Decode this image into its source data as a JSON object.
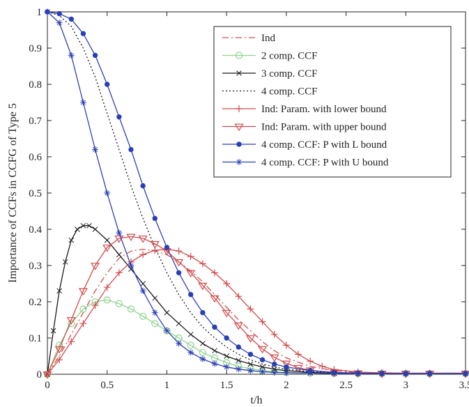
{
  "chart_data": {
    "type": "line",
    "xlabel": "t/h",
    "ylabel": "Importance of CCFs in CCFG of Type 5",
    "xlim": [
      0,
      3.5
    ],
    "ylim": [
      0,
      1
    ],
    "xticks": [
      "0",
      "0.5",
      "1",
      "1.5",
      "2",
      "2.5",
      "3",
      "3.5"
    ],
    "yticks": [
      "0",
      "0.1",
      "0.2",
      "0.3",
      "0.4",
      "0.5",
      "0.6",
      "0.7",
      "0.8",
      "0.9",
      "1"
    ],
    "xtick_values": [
      0,
      0.5,
      1,
      1.5,
      2,
      2.5,
      3,
      3.5
    ],
    "ytick_values": [
      0,
      0.1,
      0.2,
      0.3,
      0.4,
      0.5,
      0.6,
      0.7,
      0.8,
      0.9,
      1
    ],
    "grid": false,
    "legend_position": "top-right",
    "series": [
      {
        "name": "Ind",
        "color": "#d24a4a",
        "line": "dashdot",
        "marker": "none",
        "x": [
          0,
          0.1,
          0.2,
          0.3,
          0.4,
          0.5,
          0.6,
          0.7,
          0.8,
          0.9,
          1.0,
          1.1,
          1.2,
          1.3,
          1.4,
          1.5,
          1.6,
          1.7,
          1.8,
          1.9,
          2.0,
          2.2,
          2.4,
          2.6,
          2.8,
          3.0,
          3.2,
          3.5
        ],
        "y": [
          0,
          0.05,
          0.11,
          0.17,
          0.23,
          0.28,
          0.32,
          0.34,
          0.345,
          0.34,
          0.33,
          0.31,
          0.285,
          0.255,
          0.22,
          0.185,
          0.15,
          0.12,
          0.09,
          0.065,
          0.045,
          0.022,
          0.01,
          0.005,
          0.003,
          0.002,
          0.002,
          0.002
        ]
      },
      {
        "name": "2 comp. CCF",
        "color": "#8fd28f",
        "line": "solid",
        "marker": "circle-open",
        "x": [
          0,
          0.1,
          0.2,
          0.3,
          0.4,
          0.5,
          0.6,
          0.7,
          0.8,
          0.9,
          1.0,
          1.1,
          1.2,
          1.3,
          1.4,
          1.5,
          1.6,
          1.7,
          1.8,
          1.9,
          2.0,
          2.2,
          2.4,
          2.6,
          2.8,
          3.0,
          3.2,
          3.5
        ],
        "y": [
          0,
          0.08,
          0.14,
          0.18,
          0.2,
          0.205,
          0.195,
          0.18,
          0.16,
          0.14,
          0.12,
          0.1,
          0.08,
          0.06,
          0.045,
          0.032,
          0.022,
          0.015,
          0.01,
          0.007,
          0.005,
          0.003,
          0.002,
          0.002,
          0.002,
          0.002,
          0.002,
          0.002
        ]
      },
      {
        "name": "3 comp. CCF",
        "color": "#1a1a1a",
        "line": "solid",
        "marker": "x",
        "x": [
          0,
          0.05,
          0.1,
          0.15,
          0.2,
          0.25,
          0.3,
          0.35,
          0.4,
          0.5,
          0.6,
          0.7,
          0.8,
          0.9,
          1.0,
          1.1,
          1.2,
          1.3,
          1.4,
          1.5,
          1.6,
          1.7,
          1.8,
          1.9,
          2.0,
          2.2,
          2.4,
          2.6,
          2.8,
          3.0,
          3.2,
          3.5
        ],
        "y": [
          0,
          0.12,
          0.23,
          0.31,
          0.37,
          0.4,
          0.41,
          0.41,
          0.4,
          0.37,
          0.33,
          0.29,
          0.25,
          0.21,
          0.17,
          0.14,
          0.11,
          0.085,
          0.065,
          0.05,
          0.038,
          0.028,
          0.02,
          0.014,
          0.01,
          0.005,
          0.003,
          0.002,
          0.002,
          0.002,
          0.002,
          0.002
        ]
      },
      {
        "name": "4 comp. CCF",
        "color": "#1a1a1a",
        "line": "dotted",
        "marker": "none",
        "x": [
          0,
          0.1,
          0.2,
          0.3,
          0.4,
          0.5,
          0.6,
          0.7,
          0.8,
          0.9,
          1.0,
          1.1,
          1.2,
          1.3,
          1.4,
          1.5,
          1.6,
          1.7,
          1.8,
          1.9,
          2.0,
          2.2,
          2.4,
          2.6,
          2.8,
          3.0,
          3.2,
          3.5
        ],
        "y": [
          1,
          0.99,
          0.96,
          0.9,
          0.82,
          0.72,
          0.62,
          0.52,
          0.43,
          0.35,
          0.28,
          0.22,
          0.17,
          0.13,
          0.1,
          0.075,
          0.055,
          0.04,
          0.028,
          0.02,
          0.014,
          0.007,
          0.004,
          0.002,
          0.002,
          0.002,
          0.002,
          0.002
        ]
      },
      {
        "name": "Ind: Param. with lower bound",
        "color": "#d24a4a",
        "line": "solid",
        "marker": "plus",
        "x": [
          0,
          0.1,
          0.2,
          0.3,
          0.4,
          0.5,
          0.6,
          0.7,
          0.8,
          0.9,
          1.0,
          1.1,
          1.2,
          1.3,
          1.4,
          1.5,
          1.6,
          1.7,
          1.8,
          1.9,
          2.0,
          2.1,
          2.2,
          2.3,
          2.4,
          2.6,
          2.8,
          3.0,
          3.2,
          3.5
        ],
        "y": [
          0,
          0.04,
          0.09,
          0.14,
          0.19,
          0.24,
          0.28,
          0.31,
          0.33,
          0.342,
          0.345,
          0.34,
          0.325,
          0.305,
          0.28,
          0.25,
          0.215,
          0.18,
          0.145,
          0.11,
          0.08,
          0.055,
          0.036,
          0.022,
          0.013,
          0.006,
          0.004,
          0.003,
          0.003,
          0.003
        ]
      },
      {
        "name": "Ind: Param. with upper bound",
        "color": "#d24a4a",
        "line": "solid",
        "marker": "triangle-down-open",
        "x": [
          0,
          0.1,
          0.2,
          0.3,
          0.4,
          0.5,
          0.6,
          0.7,
          0.8,
          0.9,
          1.0,
          1.1,
          1.2,
          1.3,
          1.4,
          1.5,
          1.6,
          1.7,
          1.8,
          1.9,
          2.0,
          2.1,
          2.2,
          2.4,
          2.6,
          2.8,
          3.0,
          3.2,
          3.5
        ],
        "y": [
          0,
          0.07,
          0.15,
          0.23,
          0.3,
          0.35,
          0.375,
          0.38,
          0.375,
          0.36,
          0.34,
          0.31,
          0.28,
          0.245,
          0.21,
          0.17,
          0.135,
          0.1,
          0.07,
          0.047,
          0.03,
          0.018,
          0.011,
          0.005,
          0.003,
          0.002,
          0.002,
          0.002,
          0.002
        ]
      },
      {
        "name": "4 comp. CCF: P with L bound",
        "color": "#2b3fb5",
        "line": "solid",
        "marker": "dot-filled",
        "x": [
          0,
          0.1,
          0.2,
          0.3,
          0.4,
          0.5,
          0.6,
          0.7,
          0.8,
          0.9,
          1.0,
          1.1,
          1.2,
          1.3,
          1.4,
          1.5,
          1.6,
          1.7,
          1.8,
          1.9,
          2.0,
          2.2,
          2.4,
          2.6,
          2.8,
          3.0,
          3.2,
          3.5
        ],
        "y": [
          1,
          0.995,
          0.98,
          0.94,
          0.88,
          0.8,
          0.71,
          0.62,
          0.52,
          0.43,
          0.35,
          0.28,
          0.22,
          0.17,
          0.13,
          0.1,
          0.075,
          0.055,
          0.04,
          0.028,
          0.02,
          0.01,
          0.005,
          0.003,
          0.002,
          0.002,
          0.002,
          0.002
        ]
      },
      {
        "name": "4 comp. CCF: P with U bound",
        "color": "#2b3fb5",
        "line": "solid",
        "marker": "asterisk",
        "x": [
          0,
          0.1,
          0.2,
          0.3,
          0.4,
          0.5,
          0.6,
          0.7,
          0.8,
          0.9,
          1.0,
          1.1,
          1.2,
          1.3,
          1.4,
          1.5,
          1.6,
          1.7,
          1.8,
          1.9,
          2.0,
          2.2,
          2.4,
          2.6,
          2.8,
          3.0,
          3.2,
          3.5
        ],
        "y": [
          1,
          0.97,
          0.88,
          0.75,
          0.62,
          0.5,
          0.39,
          0.3,
          0.23,
          0.17,
          0.12,
          0.085,
          0.06,
          0.042,
          0.029,
          0.02,
          0.014,
          0.01,
          0.007,
          0.005,
          0.004,
          0.003,
          0.002,
          0.002,
          0.002,
          0.002,
          0.002,
          0.002
        ]
      }
    ]
  }
}
